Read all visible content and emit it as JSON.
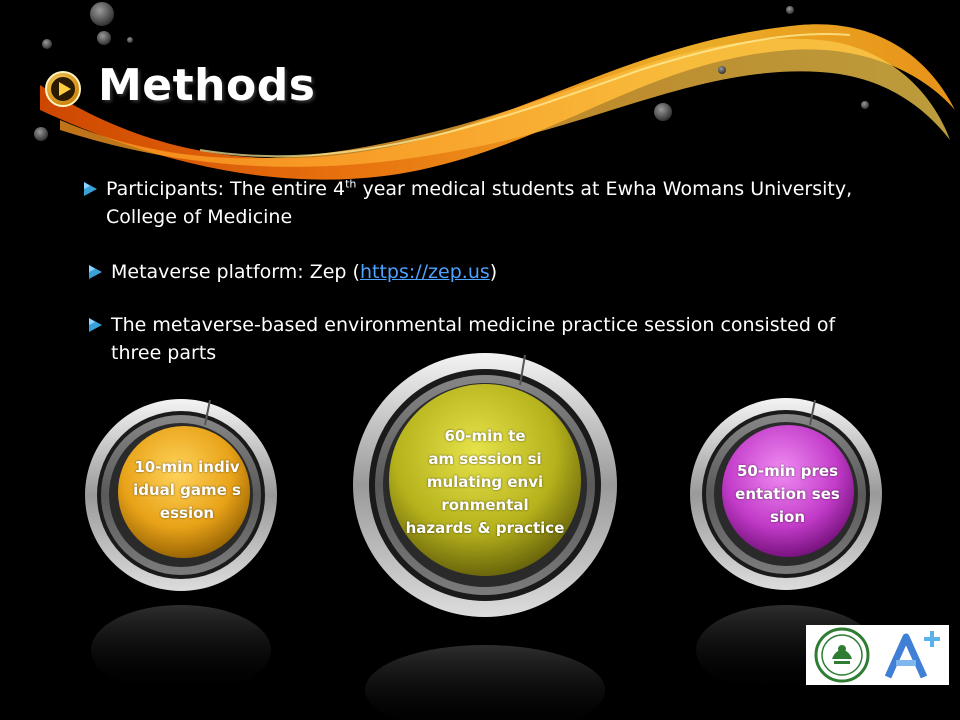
{
  "slide": {
    "title": "Methods",
    "bullets": [
      {
        "pre": "Participants: The entire 4",
        "sup": "th",
        "post": " year medical students at Ewha Womans University,",
        "line2": "College of Medicine"
      },
      {
        "pre": "Metaverse platform: Zep (",
        "link": "https://zep.us",
        "post": ")"
      },
      {
        "line1": "The metaverse-based environmental medicine practice session consisted of",
        "line2": "three parts"
      }
    ],
    "parts": [
      {
        "lines": [
          "10-min  indiv",
          "idual  game s",
          "ession"
        ],
        "color": "#e8a218"
      },
      {
        "lines": [
          "60-min   te",
          "am session   si",
          "mulating   envi",
          "ronmental",
          "hazards  & practice"
        ],
        "color": "#b6b21c"
      },
      {
        "lines": [
          "50-min  pres",
          "entation  ses",
          "sion"
        ],
        "color": "#c23cc9"
      }
    ]
  },
  "colors": {
    "accent_orange": "#f39a1a",
    "bullet_arrow": "#3aa0d8",
    "link": "#4da3ff"
  },
  "icons": {
    "title": "play-circle-icon",
    "bullet": "triangle-arrow-icon",
    "logos": [
      "university-seal-icon",
      "a-plus-logo-icon"
    ]
  }
}
